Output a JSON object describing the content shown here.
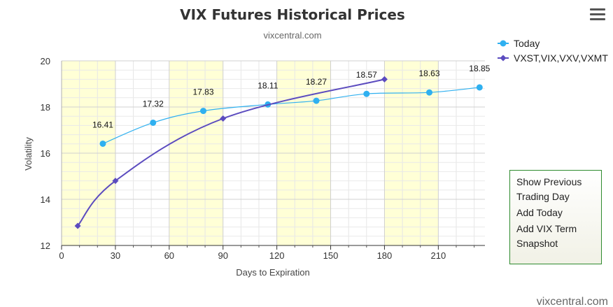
{
  "chart_data": {
    "type": "line",
    "title": "VIX Futures Historical Prices",
    "subtitle": "vixcentral.com",
    "xlabel": "Days to Expiration",
    "ylabel": "Volatility",
    "xlim": [
      0,
      236
    ],
    "ylim": [
      12,
      20
    ],
    "xticks": [
      0,
      30,
      60,
      90,
      120,
      150,
      180,
      210
    ],
    "yticks": [
      12,
      14,
      16,
      18,
      20
    ],
    "grid": true,
    "legend_position": "top-right",
    "series": [
      {
        "name": "Today",
        "color": "#2fb0f0",
        "marker": "circle",
        "x": [
          23,
          51,
          79,
          115,
          142,
          170,
          205,
          233
        ],
        "y": [
          16.41,
          17.32,
          17.83,
          18.11,
          18.27,
          18.57,
          18.63,
          18.85
        ],
        "labels": [
          "16.41",
          "17.32",
          "17.83",
          "18.11",
          "18.27",
          "18.57",
          "18.63",
          "18.85"
        ]
      },
      {
        "name": "VXST,VIX,VXV,VXMT",
        "color": "#5b4bbf",
        "marker": "diamond",
        "x": [
          9,
          30,
          90,
          180
        ],
        "y": [
          12.85,
          14.8,
          17.5,
          19.2
        ]
      }
    ]
  },
  "menu": {
    "items": [
      {
        "label": "Show Previous Trading Day"
      },
      {
        "label": "Add Today"
      },
      {
        "label": "Add VIX Term Snapshot"
      }
    ]
  },
  "credit": "vixcentral.com"
}
